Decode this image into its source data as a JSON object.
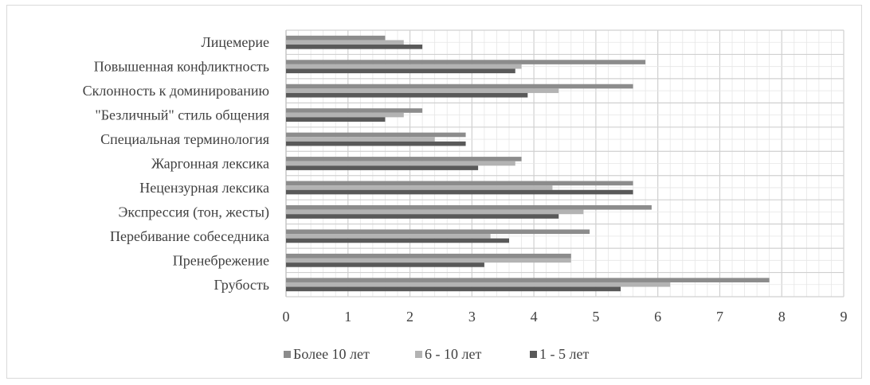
{
  "chart_data": {
    "type": "bar",
    "orientation": "horizontal",
    "categories": [
      "Лицемерие",
      "Повышенная конфликтность",
      "Склонность к доминированию",
      "\"Безличный\" стиль общения",
      "Специальная терминология",
      "Жаргонная лексика",
      "Нецензурная лексика",
      "Экспрессия (тон, жесты)",
      "Перебивание собеседника",
      "Пренебрежение",
      "Грубость"
    ],
    "series": [
      {
        "name": "Более 10 лет",
        "color": "#8c8c8c",
        "values": [
          1.6,
          5.8,
          5.6,
          2.2,
          2.9,
          3.8,
          5.6,
          5.9,
          4.9,
          4.6,
          7.8
        ]
      },
      {
        "name": "6 - 10 лет",
        "color": "#b3b3b3",
        "values": [
          1.9,
          3.8,
          4.4,
          1.9,
          2.4,
          3.7,
          4.3,
          4.8,
          3.3,
          4.6,
          6.2
        ]
      },
      {
        "name": "1 - 5 лет",
        "color": "#595959",
        "values": [
          2.2,
          3.7,
          3.9,
          1.6,
          2.9,
          3.1,
          5.6,
          4.4,
          3.6,
          3.2,
          5.4
        ]
      }
    ],
    "xlim": [
      0,
      9
    ],
    "xticks": [
      "0",
      "1",
      "2",
      "3",
      "4",
      "5",
      "6",
      "7",
      "8",
      "9"
    ],
    "title": "",
    "xlabel": "",
    "ylabel": "",
    "grid": true,
    "legend": "bottom"
  }
}
